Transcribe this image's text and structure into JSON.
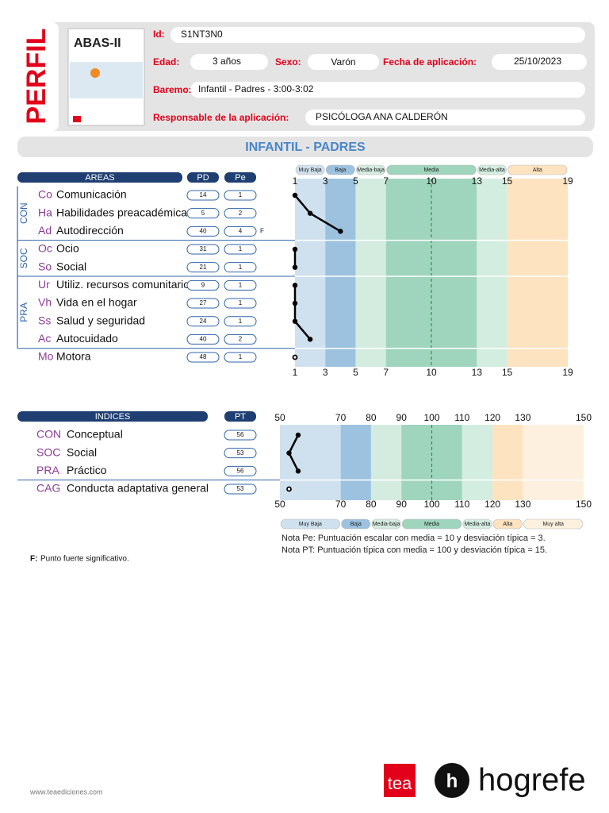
{
  "header": {
    "perfil": "PERFIL",
    "cover_title": "ABAS-II",
    "id_label": "Id:",
    "id": "S1NT3N0",
    "edad_label": "Edad:",
    "edad": "3  años",
    "sexo_label": "Sexo:",
    "sexo": "Varón",
    "fecha_label": "Fecha de aplicación:",
    "fecha": "25/10/2023",
    "baremo_label": "Baremo:",
    "baremo": "Infantil - Padres  - 3:00-3:02",
    "responsable_label": "Responsable de la aplicación:",
    "responsable": "PSICÓLOGA ANA CALDERÓN"
  },
  "section_title": "INFANTIL - PADRES",
  "areas": {
    "headers": {
      "area": "AREAS",
      "pd": "PD",
      "pe": "Pe"
    },
    "xlim": [
      1,
      19
    ],
    "ticks": [
      1,
      3,
      5,
      7,
      10,
      13,
      15,
      19
    ],
    "mean": 10,
    "bands": [
      {
        "label": "Muy Baja",
        "range": [
          1,
          3
        ],
        "color": "#cfe1ef"
      },
      {
        "label": "Baja",
        "range": [
          3,
          5
        ],
        "color": "#9cc2e0"
      },
      {
        "label": "Media-baja",
        "range": [
          5,
          7
        ],
        "color": "#d4ece0"
      },
      {
        "label": "Media",
        "range": [
          7,
          13
        ],
        "color": "#9fd5bd"
      },
      {
        "label": "Media-alta",
        "range": [
          13,
          15
        ],
        "color": "#d4ede1"
      },
      {
        "label": "Alta",
        "range": [
          15,
          19
        ],
        "color": "#fde3c0"
      }
    ],
    "groups": [
      {
        "label": "CON",
        "rows": [
          {
            "code": "Co",
            "name": "Comunicación",
            "pd": 14,
            "pe": 1
          },
          {
            "code": "Ha",
            "name": "Habilidades preacadémicas",
            "pd": 5,
            "pe": 2
          },
          {
            "code": "Ad",
            "name": "Autodirección",
            "pd": 40,
            "pe": 4,
            "flag": "F"
          }
        ]
      },
      {
        "label": "SOC",
        "rows": [
          {
            "code": "Oc",
            "name": "Ocio",
            "pd": 31,
            "pe": 1
          },
          {
            "code": "So",
            "name": "Social",
            "pd": 21,
            "pe": 1
          }
        ]
      },
      {
        "label": "PRA",
        "rows": [
          {
            "code": "Ur",
            "name": "Utiliz. recursos comunitarios",
            "pd": 9,
            "pe": 1
          },
          {
            "code": "Vh",
            "name": "Vida en el hogar",
            "pd": 27,
            "pe": 1
          },
          {
            "code": "Ss",
            "name": "Salud y seguridad",
            "pd": 24,
            "pe": 1
          },
          {
            "code": "Ac",
            "name": "Autocuidado",
            "pd": 40,
            "pe": 2
          }
        ]
      },
      {
        "rows": [
          {
            "code": "Mo",
            "name": "Motora",
            "pd": 48,
            "pe": 1
          }
        ]
      }
    ]
  },
  "indices": {
    "headers": {
      "index": "INDICES",
      "pt": "PT"
    },
    "xlim": [
      50,
      150
    ],
    "ticks": [
      50,
      70,
      80,
      90,
      100,
      110,
      120,
      130,
      150
    ],
    "mean": 100,
    "bands": [
      {
        "label": "Muy Baja",
        "range": [
          50,
          70
        ],
        "color": "#cfe1ef"
      },
      {
        "label": "Baja",
        "range": [
          70,
          80
        ],
        "color": "#9cc2e0"
      },
      {
        "label": "Media-baja",
        "range": [
          80,
          90
        ],
        "color": "#d4ece0"
      },
      {
        "label": "Media",
        "range": [
          90,
          110
        ],
        "color": "#9fd5bd"
      },
      {
        "label": "Media-alta",
        "range": [
          110,
          120
        ],
        "color": "#d4ede1"
      },
      {
        "label": "Alta",
        "range": [
          120,
          130
        ],
        "color": "#fde3c0"
      },
      {
        "label": "Muy alta",
        "range": [
          130,
          150
        ],
        "color": "#fdf0de"
      }
    ],
    "groups": [
      {
        "rows": [
          {
            "code": "CON",
            "name": "Conceptual",
            "pt": 56
          },
          {
            "code": "SOC",
            "name": "Social",
            "pt": 53
          },
          {
            "code": "PRA",
            "name": "Práctico",
            "pt": 56
          }
        ]
      },
      {
        "rows": [
          {
            "code": "CAG",
            "name": "Conducta adaptativa general",
            "pt": 53
          }
        ]
      }
    ]
  },
  "notes": [
    "Nota Pe: Puntuación escalar con media = 10 y desviación típica = 3.",
    "Nota PT: Puntuación típica con media = 100 y desviación típica = 15."
  ],
  "footnote": {
    "key": "F:",
    "text": "Punto fuerte significativo."
  },
  "footer": {
    "url": "www.teaediciones.com",
    "tea": "tea",
    "hogrefe": "hogrefe"
  }
}
